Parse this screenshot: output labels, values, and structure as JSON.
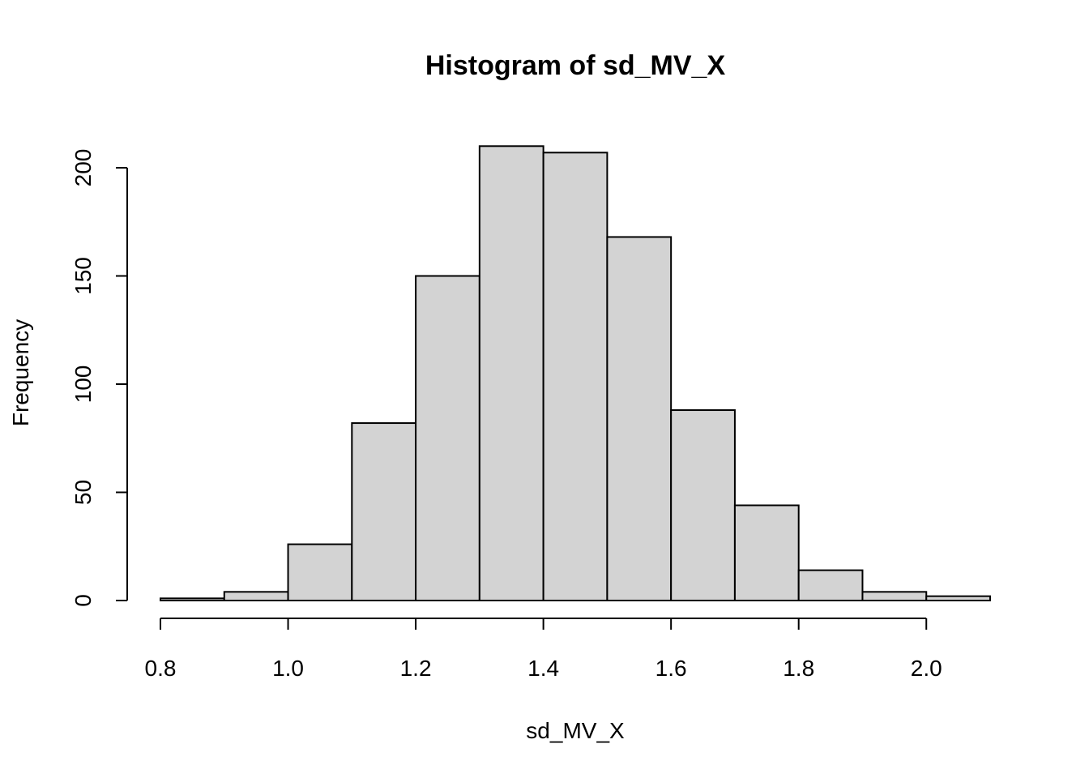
{
  "chart_data": {
    "type": "bar",
    "subtype": "histogram",
    "title": "Histogram of sd_MV_X",
    "xlabel": "sd_MV_X",
    "ylabel": "Frequency",
    "bins": [
      {
        "x0": 0.8,
        "x1": 0.9,
        "count": 1
      },
      {
        "x0": 0.9,
        "x1": 1.0,
        "count": 4
      },
      {
        "x0": 1.0,
        "x1": 1.1,
        "count": 26
      },
      {
        "x0": 1.1,
        "x1": 1.2,
        "count": 82
      },
      {
        "x0": 1.2,
        "x1": 1.3,
        "count": 150
      },
      {
        "x0": 1.3,
        "x1": 1.4,
        "count": 210
      },
      {
        "x0": 1.4,
        "x1": 1.5,
        "count": 207
      },
      {
        "x0": 1.5,
        "x1": 1.6,
        "count": 168
      },
      {
        "x0": 1.6,
        "x1": 1.7,
        "count": 88
      },
      {
        "x0": 1.7,
        "x1": 1.8,
        "count": 44
      },
      {
        "x0": 1.8,
        "x1": 1.9,
        "count": 14
      },
      {
        "x0": 1.9,
        "x1": 2.0,
        "count": 4
      },
      {
        "x0": 2.0,
        "x1": 2.1,
        "count": 2
      }
    ],
    "xlim": [
      0.8,
      2.1
    ],
    "ylim": [
      0,
      210
    ],
    "x_ticks": [
      0.8,
      1.0,
      1.2,
      1.4,
      1.6,
      1.8,
      2.0
    ],
    "x_tick_labels": [
      "0.8",
      "1.0",
      "1.2",
      "1.4",
      "1.6",
      "1.8",
      "2.0"
    ],
    "y_ticks": [
      0,
      50,
      100,
      150,
      200
    ],
    "y_tick_labels": [
      "0",
      "50",
      "100",
      "150",
      "200"
    ],
    "bar_fill": "#d3d3d3",
    "bar_stroke": "#000000",
    "grid": false,
    "legend": "none"
  }
}
